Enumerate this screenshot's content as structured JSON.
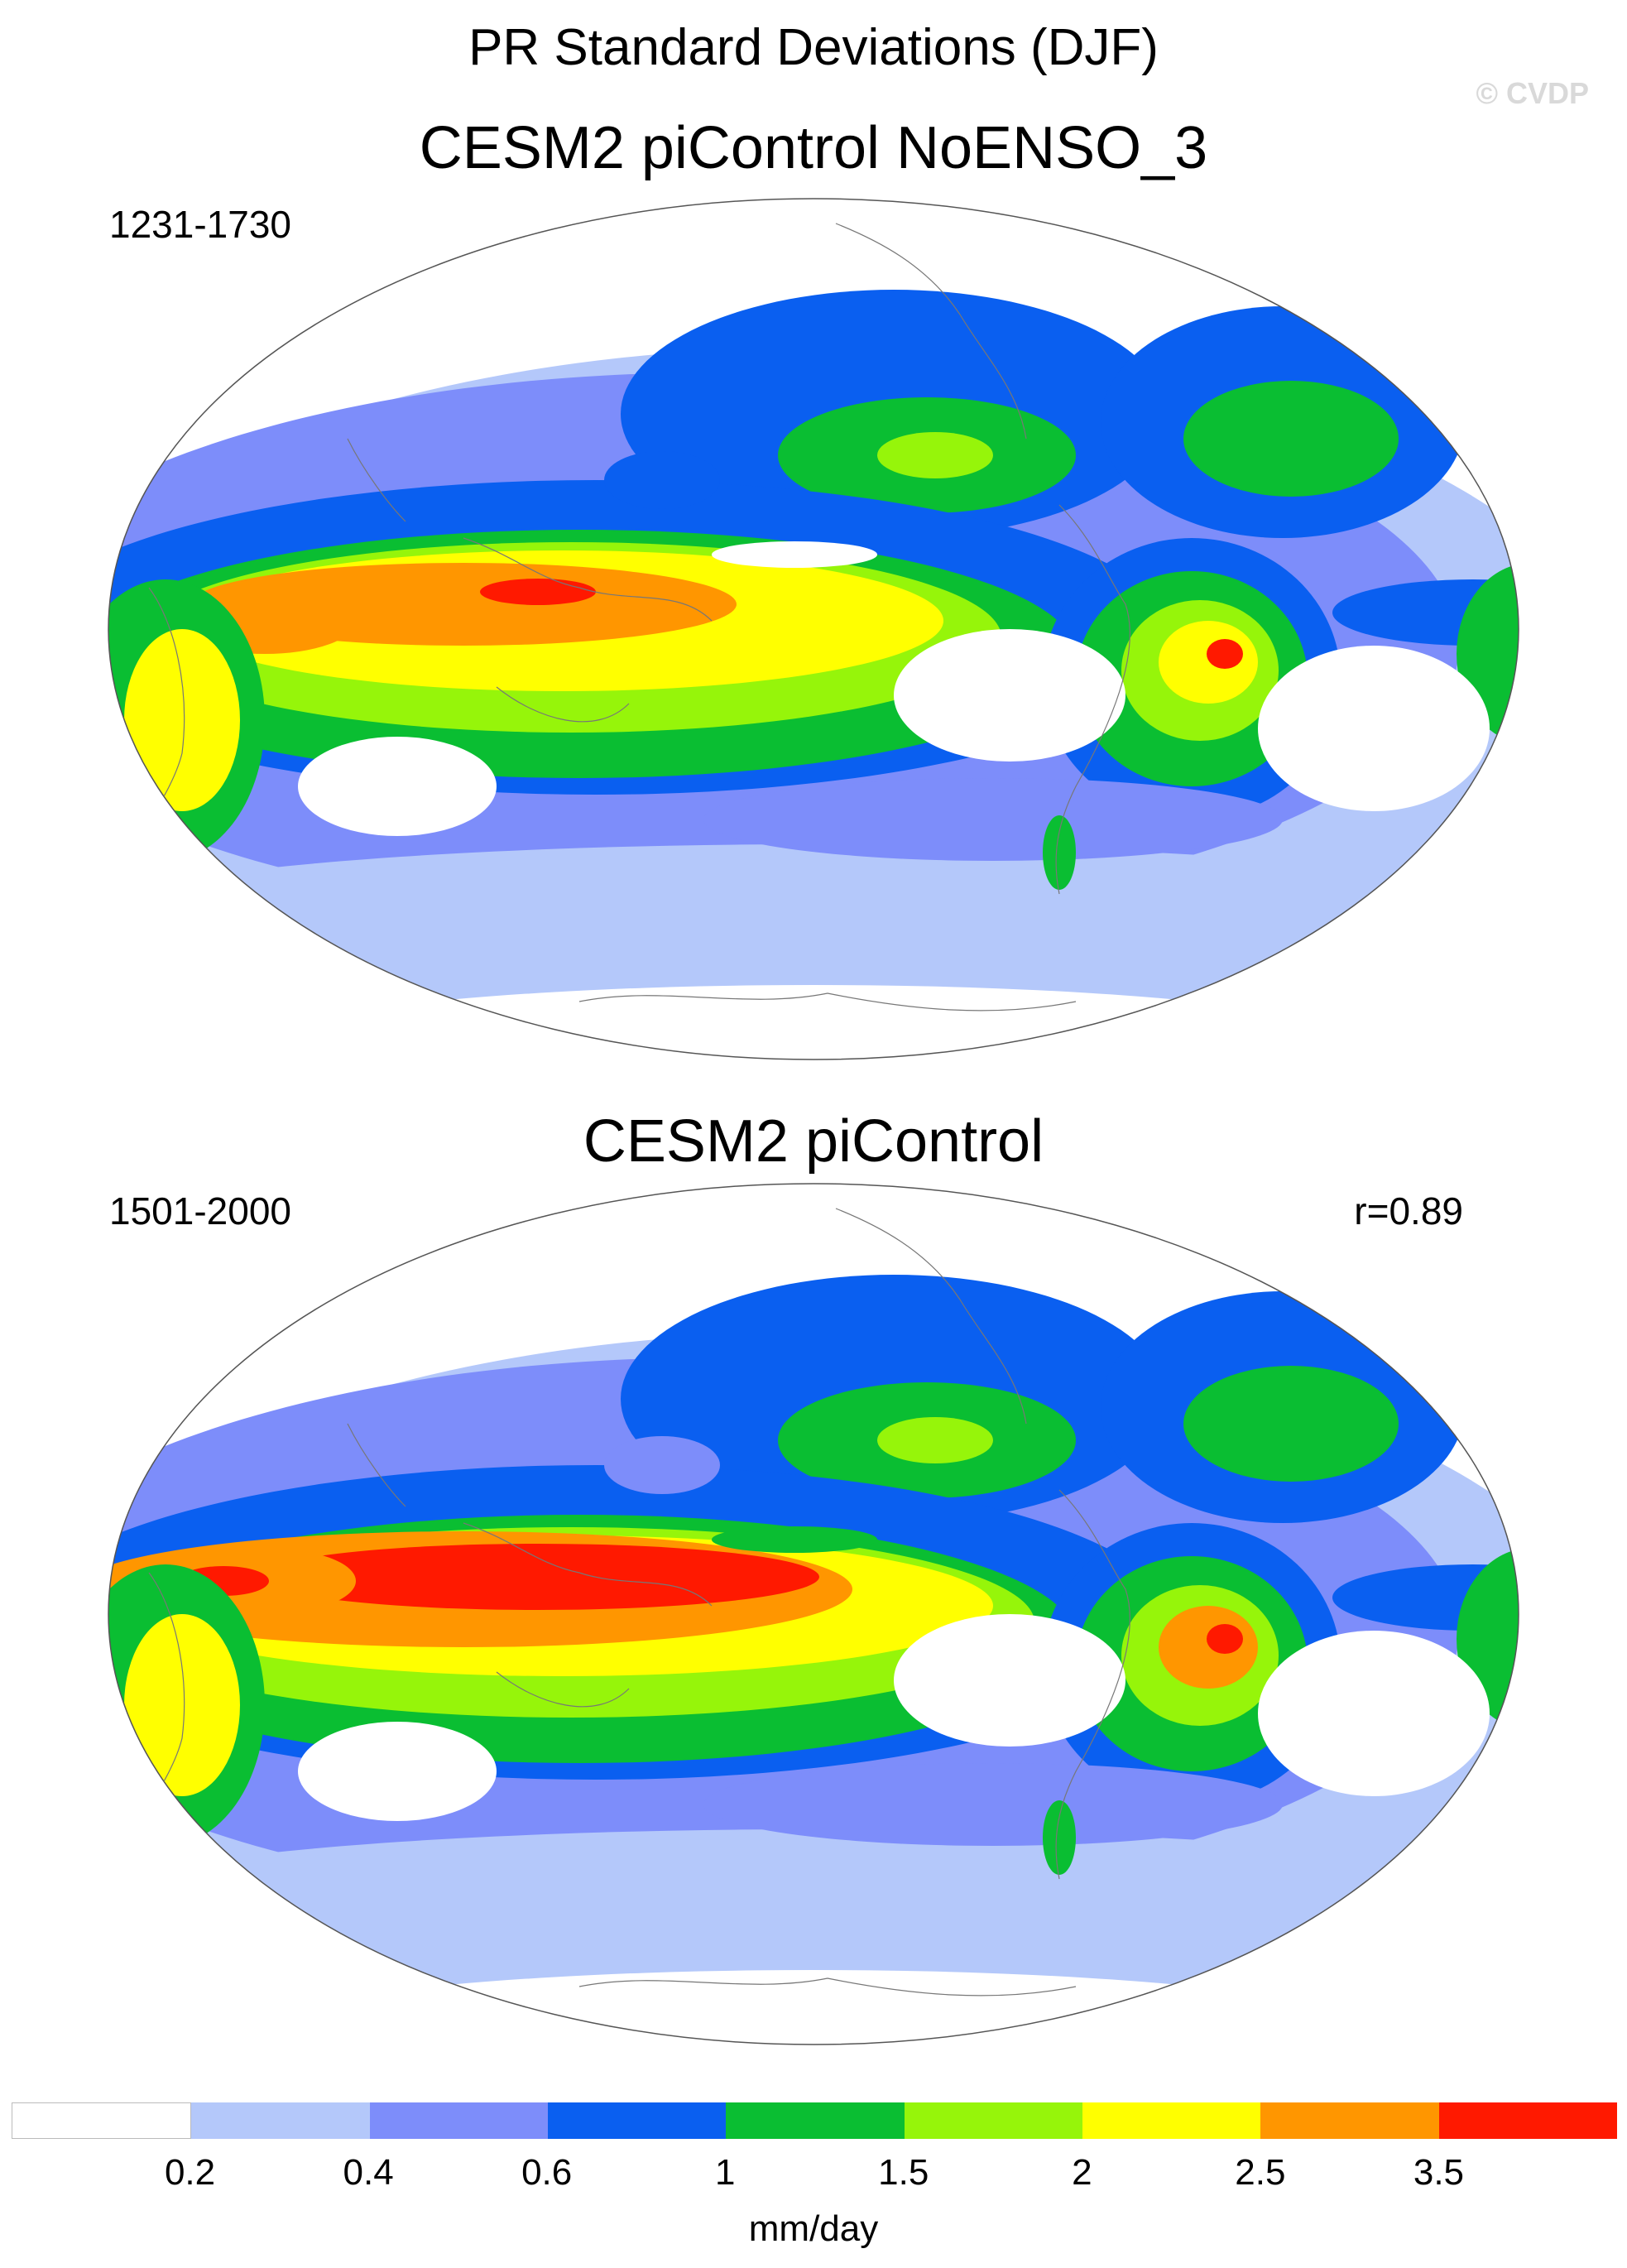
{
  "title": "PR Standard Deviations (DJF)",
  "watermark": "© CVDP",
  "panels": [
    {
      "title": "CESM2 piControl NoENSO_3",
      "period": "1231-1730",
      "corr": ""
    },
    {
      "title": "CESM2 piControl",
      "period": "1501-2000",
      "corr": "r=0.89"
    }
  ],
  "colorbar": {
    "colors": [
      "#ffffff",
      "#b4c8fa",
      "#7d8dfa",
      "#0a5ff0",
      "#0abe32",
      "#96f50a",
      "#ffff00",
      "#ff9600",
      "#ff1900"
    ],
    "labels": [
      "0.2",
      "0.4",
      "0.6",
      "1",
      "1.5",
      "2",
      "2.5",
      "3.5"
    ],
    "units": "mm/day"
  }
}
